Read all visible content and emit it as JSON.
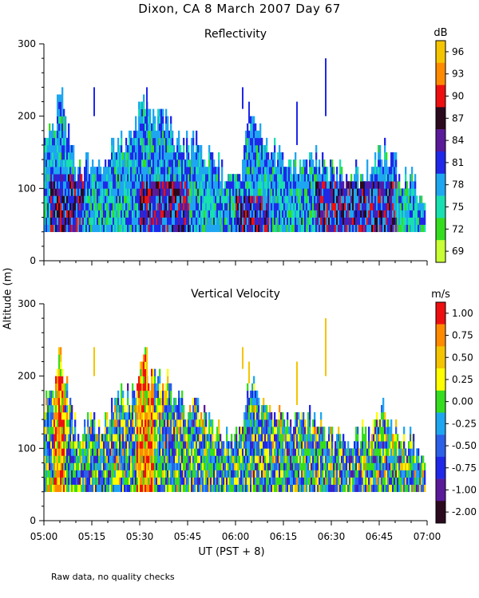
{
  "page": {
    "title": "Dixon, CA  8 March 2007  Day  67",
    "ylabel": "Altitude  (m)",
    "xlabel": "UT   (PST + 8)",
    "footnote": "Raw data, no quality checks"
  },
  "chart_data": [
    {
      "type": "heatmap",
      "title": "Reflectivity",
      "xlabel": "UT   (PST + 8)",
      "ylabel": "Altitude  (m)",
      "xlim": [
        0,
        120
      ],
      "ylim": [
        0,
        300
      ],
      "x_tick_values": [
        0,
        15,
        30,
        45,
        60,
        75,
        90,
        105,
        120
      ],
      "x_tick_labels": [
        "05:00",
        "05:15",
        "05:30",
        "05:45",
        "06:00",
        "06:15",
        "06:30",
        "06:45",
        "07:00"
      ],
      "y_ticks": [
        0,
        100,
        200,
        300
      ],
      "colorbar": {
        "unit": "dB",
        "labels": [
          "96",
          "93",
          "90",
          "87",
          "84",
          "81",
          "78",
          "75",
          "72",
          "69"
        ],
        "colors": [
          "#f5c400",
          "#ff8a00",
          "#ee1010",
          "#2b0a1e",
          "#5a1a9a",
          "#1f28e8",
          "#1ea6f0",
          "#18e0b0",
          "#35dd1e",
          "#c8ff35"
        ]
      },
      "base_altitude": 40,
      "start_minute": 0,
      "end_minute": 119,
      "echo_top_profile": [
        [
          0,
          160
        ],
        [
          3,
          180
        ],
        [
          5,
          230
        ],
        [
          8,
          160
        ],
        [
          10,
          110
        ],
        [
          15,
          140
        ],
        [
          18,
          120
        ],
        [
          22,
          160
        ],
        [
          28,
          170
        ],
        [
          31,
          230
        ],
        [
          33,
          190
        ],
        [
          36,
          200
        ],
        [
          42,
          160
        ],
        [
          48,
          150
        ],
        [
          55,
          120
        ],
        [
          59,
          100
        ],
        [
          61,
          110
        ],
        [
          64,
          180
        ],
        [
          67,
          170
        ],
        [
          70,
          150
        ],
        [
          75,
          140
        ],
        [
          80,
          130
        ],
        [
          85,
          140
        ],
        [
          90,
          120
        ],
        [
          95,
          110
        ],
        [
          102,
          120
        ],
        [
          107,
          150
        ],
        [
          112,
          110
        ],
        [
          116,
          100
        ],
        [
          119,
          80
        ]
      ],
      "strong_echo_regions": [
        {
          "minutes": [
            2,
            12
          ],
          "alt": [
            40,
            110
          ],
          "intensity": "81-87"
        },
        {
          "minutes": [
            30,
            45
          ],
          "alt": [
            40,
            100
          ],
          "intensity": "84-90"
        },
        {
          "minutes": [
            60,
            70
          ],
          "alt": [
            40,
            80
          ],
          "intensity": "84-90"
        },
        {
          "minutes": [
            85,
            110
          ],
          "alt": [
            40,
            100
          ],
          "intensity": "81-90"
        }
      ]
    },
    {
      "type": "heatmap",
      "title": "Vertical Velocity",
      "xlabel": "UT   (PST + 8)",
      "ylabel": "Altitude  (m)",
      "xlim": [
        0,
        120
      ],
      "ylim": [
        0,
        300
      ],
      "x_tick_values": [
        0,
        15,
        30,
        45,
        60,
        75,
        90,
        105,
        120
      ],
      "x_tick_labels": [
        "05:00",
        "05:15",
        "05:30",
        "05:45",
        "06:00",
        "06:15",
        "06:30",
        "06:45",
        "07:00"
      ],
      "y_ticks": [
        0,
        100,
        200,
        300
      ],
      "colorbar": {
        "unit": "m/s",
        "labels": [
          "1.00",
          "0.75",
          "0.50",
          "0.25",
          "0.00",
          "-0.25",
          "-0.50",
          "-0.75",
          "-1.00",
          "-2.00"
        ],
        "colors": [
          "#ee1010",
          "#ff8a00",
          "#f5c400",
          "#ffff00",
          "#35dd1e",
          "#1ea6f0",
          "#2b60e8",
          "#1f28e8",
          "#5a1a9a",
          "#2b0a1e"
        ]
      },
      "base_altitude": 40,
      "start_minute": 0,
      "end_minute": 119,
      "dominant_values_m_s": [
        -0.5,
        0.0,
        0.25
      ],
      "updraft_regions": [
        {
          "minutes": [
            3,
            6
          ],
          "alt": [
            40,
            240
          ],
          "intensity": "0.5-1.0"
        },
        {
          "minutes": [
            29,
            34
          ],
          "alt": [
            40,
            240
          ],
          "intensity": "0.5-1.0"
        }
      ]
    }
  ]
}
